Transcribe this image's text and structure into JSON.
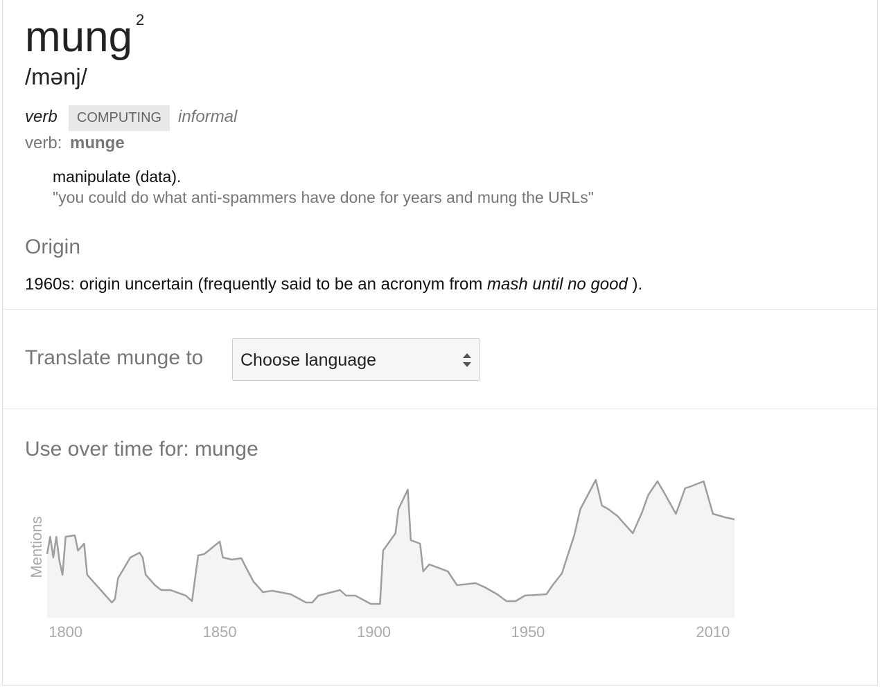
{
  "header": {
    "word": "mung",
    "superscript": "2",
    "pronunciation": "/mənj/"
  },
  "sense": {
    "part_of_speech": "verb",
    "domain": "COMPUTING",
    "register": "informal",
    "inflection_label": "verb:",
    "inflection": "munge",
    "definition": "manipulate (data).",
    "example": "\"you could do what anti-spammers have done for years and mung the URLs\""
  },
  "origin": {
    "heading": "Origin",
    "text_before": "1960s: origin uncertain (frequently said to be an acronym from",
    "emphasis": "mash until no good",
    "text_after": ")."
  },
  "translate": {
    "label": "Translate munge to",
    "select": "Choose language"
  },
  "chart_data": {
    "type": "area",
    "title": "Use over time for: munge",
    "y_label": "Mentions",
    "color": "#9e9e9e",
    "fill": "#f4f4f4",
    "xlim": [
      1794,
      2017
    ],
    "ylim": [
      0,
      100
    ],
    "xticks": [
      1800,
      1850,
      1900,
      1950,
      2010
    ],
    "x": [
      1794,
      1795,
      1796,
      1797,
      1798,
      1799,
      1800,
      1803,
      1804,
      1806,
      1807,
      1811,
      1815,
      1816,
      1817,
      1819,
      1821,
      1824,
      1825,
      1826,
      1829,
      1831,
      1834,
      1839,
      1841,
      1843,
      1845,
      1850,
      1851,
      1854,
      1857,
      1858,
      1861,
      1864,
      1867,
      1873,
      1878,
      1880,
      1882,
      1889,
      1891,
      1894,
      1899,
      1902,
      1903,
      1907,
      1908,
      1911,
      1912,
      1915,
      1916,
      1918,
      1924,
      1927,
      1933,
      1936,
      1940,
      1943,
      1946,
      1949,
      1956,
      1958,
      1961,
      1965,
      1967,
      1972,
      1974,
      1976,
      1979,
      1984,
      1987,
      1989,
      1992,
      1994,
      1998,
      2001,
      2003,
      2007,
      2010,
      2014,
      2017
    ],
    "values": [
      46,
      58.5,
      43.5,
      58.5,
      41,
      31,
      58.5,
      59.5,
      48.5,
      53.5,
      31,
      21,
      11,
      13.5,
      28.5,
      36,
      43.5,
      47,
      43.5,
      31,
      23.5,
      20,
      20,
      16,
      12,
      45,
      46,
      55,
      43.5,
      42,
      43,
      38.5,
      26,
      18.5,
      19.5,
      17,
      11,
      11,
      16,
      20,
      16,
      16,
      10,
      10,
      48.5,
      61,
      78.5,
      92.5,
      56,
      53.5,
      33.5,
      38.5,
      33.5,
      23.5,
      25,
      22,
      17,
      12,
      12,
      16,
      17,
      23.5,
      32,
      59.5,
      78.5,
      99.5,
      81,
      78.5,
      73.5,
      61,
      76,
      88.5,
      98.5,
      91,
      75,
      93.5,
      95,
      98.5,
      75,
      72.5,
      71
    ]
  }
}
